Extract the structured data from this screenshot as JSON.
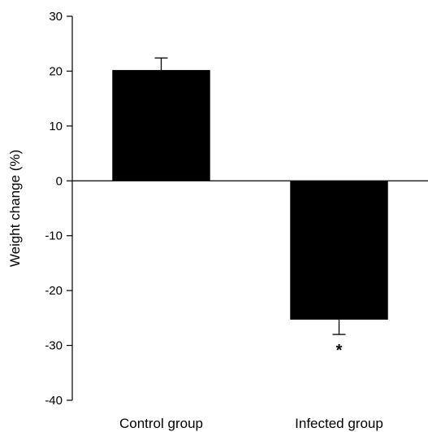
{
  "chart_data": {
    "type": "bar",
    "title": "",
    "xlabel": "",
    "ylabel": "Weight change (%)",
    "categories": [
      "Control group",
      "Infected group"
    ],
    "values": [
      20.2,
      -25.3
    ],
    "error_bars": [
      2.2,
      2.7
    ],
    "error_direction": [
      "up",
      "down"
    ],
    "ylim": [
      -40,
      30
    ],
    "yticks": [
      30,
      20,
      10,
      0,
      -10,
      -20,
      -30,
      -40
    ],
    "ytick_labels": [
      "30",
      "20",
      "10",
      "0",
      "-10",
      "-20",
      "-30",
      "-40"
    ],
    "annotations": [
      {
        "category": "Infected group",
        "text": "*"
      }
    ],
    "bar_color": "#000000",
    "grid": false,
    "legend": "none"
  }
}
